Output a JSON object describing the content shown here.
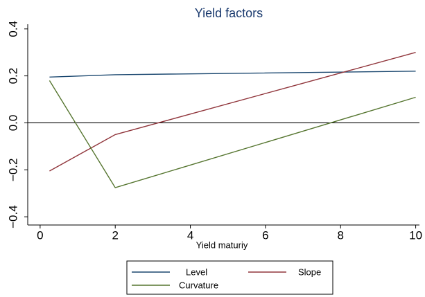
{
  "chart_data": {
    "type": "line",
    "title": "Yield factors",
    "x_label": "Yield maturiy",
    "x": [
      0.25,
      2,
      10
    ],
    "series": [
      {
        "name": "Level",
        "color": "#1a476f",
        "values": [
          0.195,
          0.205,
          0.22
        ]
      },
      {
        "name": "Slope",
        "color": "#90353b",
        "values": [
          -0.205,
          -0.05,
          0.3
        ]
      },
      {
        "name": "Curvature",
        "color": "#55752f",
        "values": [
          0.18,
          -0.276,
          0.109
        ]
      }
    ],
    "xlim": [
      -0.33,
      10.1
    ],
    "ylim": [
      -0.435,
      0.42
    ],
    "xticks": [
      0,
      2,
      4,
      6,
      8,
      10
    ],
    "yticks": [
      {
        "value": -0.4,
        "label": "−0.4"
      },
      {
        "value": -0.2,
        "label": "−0.2"
      },
      {
        "value": 0,
        "label": "0.0"
      },
      0.2,
      0.4
    ],
    "hline": 0,
    "grid": false
  }
}
